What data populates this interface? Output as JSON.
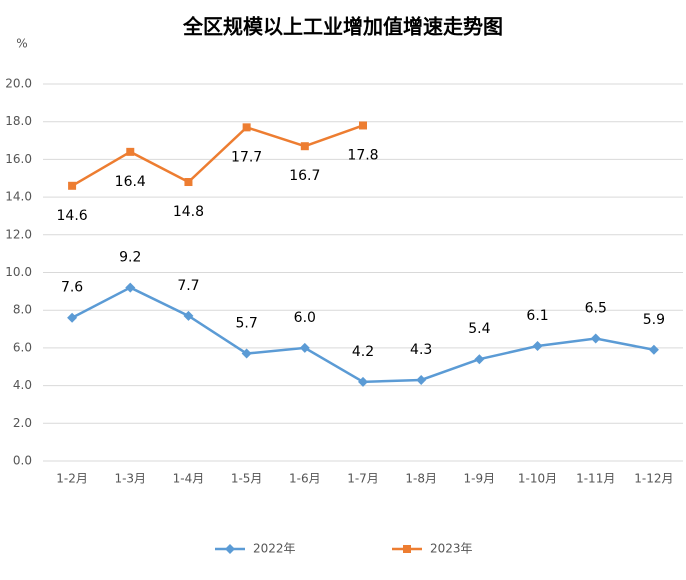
{
  "chart_data": {
    "type": "line",
    "title": "全区规模以上工业增加值增速走势图",
    "y_unit": "%",
    "categories": [
      "1-2月",
      "1-3月",
      "1-4月",
      "1-5月",
      "1-6月",
      "1-7月",
      "1-8月",
      "1-9月",
      "1-10月",
      "1-11月",
      "1-12月"
    ],
    "series": [
      {
        "name": "2022年",
        "color": "#5b9bd5",
        "marker": "diamond",
        "values": [
          7.6,
          9.2,
          7.7,
          5.7,
          6.0,
          4.2,
          4.3,
          5.4,
          6.1,
          6.5,
          5.9
        ],
        "value_labels": [
          "7.6",
          "9.2",
          "7.7",
          "5.7",
          "6.0",
          "4.2",
          "4.3",
          "5.4",
          "6.1",
          "6.5",
          "5.9"
        ]
      },
      {
        "name": "2023年",
        "color": "#ed7d31",
        "marker": "square",
        "values": [
          14.6,
          16.4,
          14.8,
          17.7,
          16.7,
          17.8,
          null,
          null,
          null,
          null,
          null
        ],
        "value_labels": [
          "14.6",
          "16.4",
          "14.8",
          "17.7",
          "16.7",
          "17.8",
          null,
          null,
          null,
          null,
          null
        ]
      }
    ],
    "ylim": [
      0,
      20
    ],
    "yticks": [
      {
        "value": 0,
        "label": "0.0"
      },
      {
        "value": 2,
        "label": "2.0"
      },
      {
        "value": 4,
        "label": "4.0"
      },
      {
        "value": 6,
        "label": "6.0"
      },
      {
        "value": 8,
        "label": "8.0"
      },
      {
        "value": 10,
        "label": "10.0"
      },
      {
        "value": 12,
        "label": "12.0"
      },
      {
        "value": 14,
        "label": "14.0"
      },
      {
        "value": 16,
        "label": "16.0"
      },
      {
        "value": 18,
        "label": "18.0"
      },
      {
        "value": 20,
        "label": "20.0"
      }
    ],
    "grid": true,
    "legend": "bottom"
  }
}
